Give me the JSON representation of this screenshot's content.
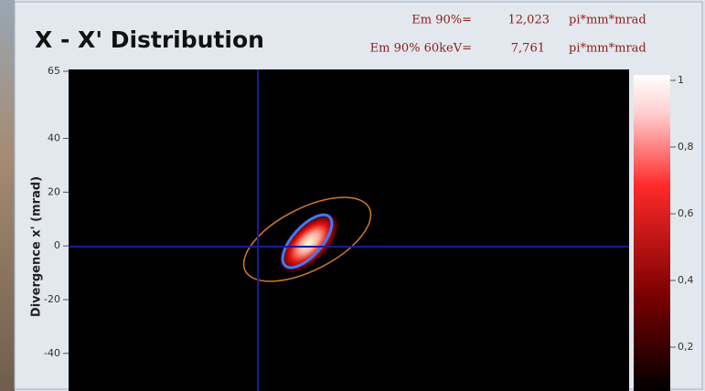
{
  "panel": {
    "title": "X - X' Distribution",
    "emittance": [
      {
        "label": "Em 90%=",
        "value": "12,023",
        "unit": "pi*mm*mrad"
      },
      {
        "label": "Em 90% 60keV=",
        "value": "7,761",
        "unit": "pi*mm*mrad"
      }
    ],
    "y_axis": {
      "label": "Divergence x' (mrad)",
      "ylim": [
        -54,
        65
      ],
      "yticks": [
        65,
        40,
        20,
        0,
        -20,
        -40
      ]
    },
    "colorbar": {
      "lim": [
        0,
        1
      ],
      "ticks": [
        {
          "value": 1,
          "label": "1"
        },
        {
          "value": 0.8,
          "label": "0,8"
        },
        {
          "value": 0.6,
          "label": "0,6"
        },
        {
          "value": 0.4,
          "label": "0,4"
        },
        {
          "value": 0.2,
          "label": "0,2"
        }
      ]
    }
  }
}
